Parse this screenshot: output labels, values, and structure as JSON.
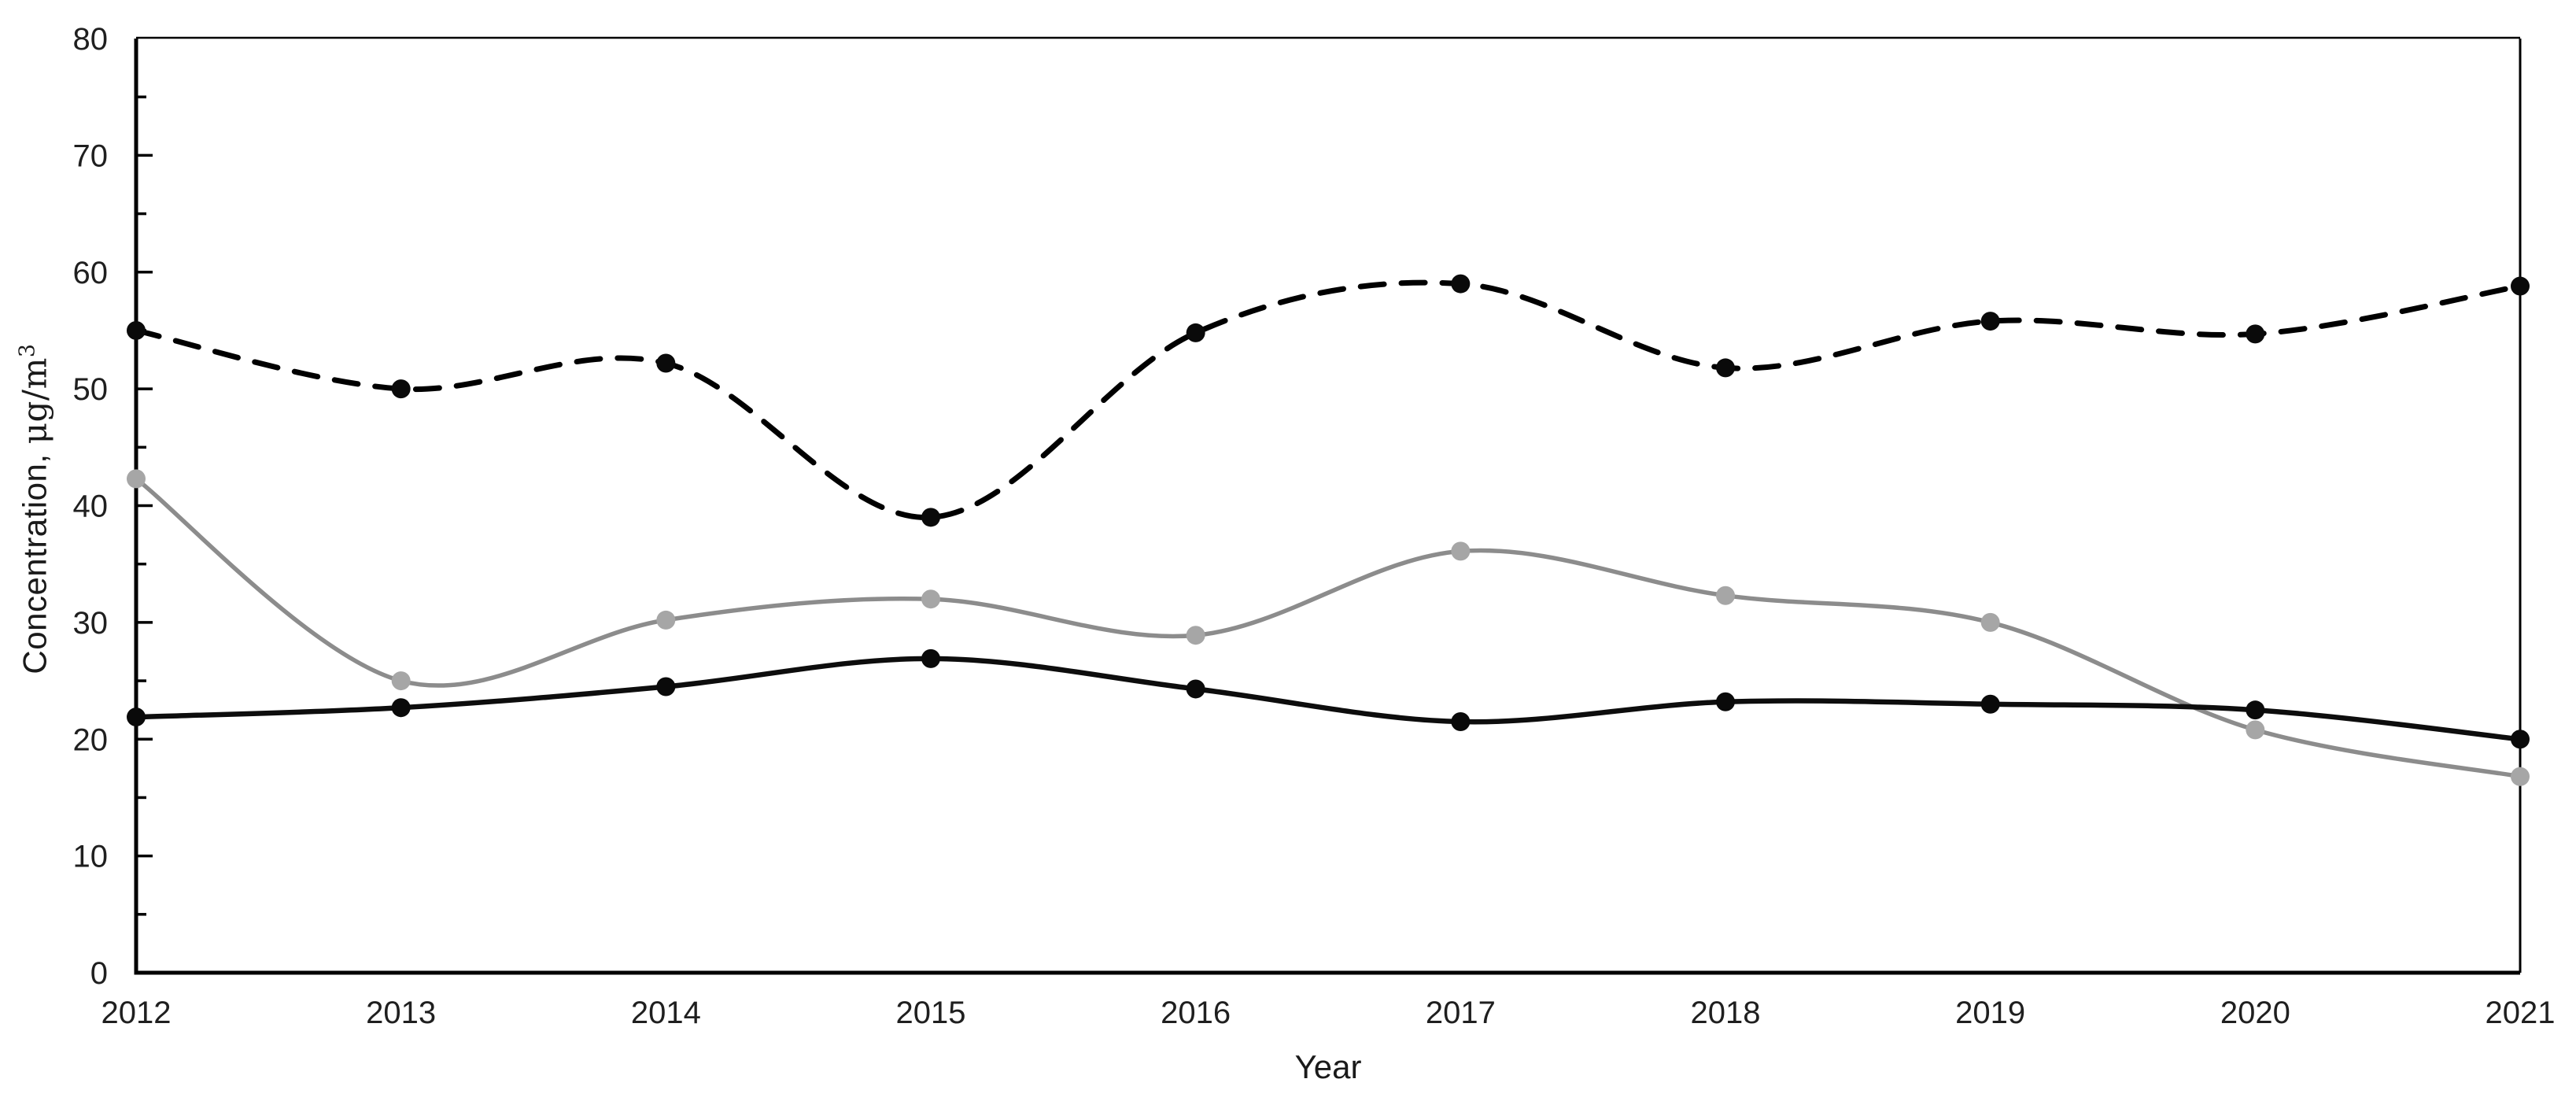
{
  "chart_data": {
    "type": "line",
    "title": "",
    "xlabel": "Year",
    "ylabel": "Concentration, μg/m³",
    "ylabel_prefix": "Concentration, ",
    "ylabel_unit": "μg/m",
    "ylabel_sup": "3",
    "categories": [
      "2012",
      "2013",
      "2014",
      "2015",
      "2016",
      "2017",
      "2018",
      "2019",
      "2020",
      "2021"
    ],
    "x_tick_labels": [
      "2012",
      "2013",
      "2014",
      "2015",
      "2016",
      "2017",
      "2018",
      "2019",
      "2020",
      "2021"
    ],
    "y_tick_labels": [
      "0",
      "10",
      "20",
      "30",
      "40",
      "50",
      "60",
      "70",
      "80"
    ],
    "ylim": [
      0,
      80
    ],
    "y_major_step": 10,
    "y_minor_step": 5,
    "grid": "off",
    "legend_position": "none",
    "line_smoothing": "smooth",
    "series": [
      {
        "id": "upper-dashed-black",
        "line_style": "dashed",
        "color": "#000000",
        "marker_color": "#0a0a0a",
        "values": [
          55,
          50,
          52.2,
          39,
          54.8,
          59,
          51.8,
          55.8,
          54.7,
          58.8
        ]
      },
      {
        "id": "middle-solid-gray",
        "line_style": "solid",
        "color": "#8c8c8c",
        "marker_color": "#a6a6a6",
        "values": [
          42.3,
          25,
          30.2,
          32,
          28.9,
          36.1,
          32.3,
          30,
          20.8,
          16.8
        ]
      },
      {
        "id": "lower-solid-black",
        "line_style": "solid",
        "color": "#0d0d0d",
        "marker_color": "#0a0a0a",
        "values": [
          21.9,
          22.7,
          24.5,
          26.9,
          24.3,
          21.5,
          23.2,
          23,
          22.5,
          20
        ]
      }
    ]
  }
}
